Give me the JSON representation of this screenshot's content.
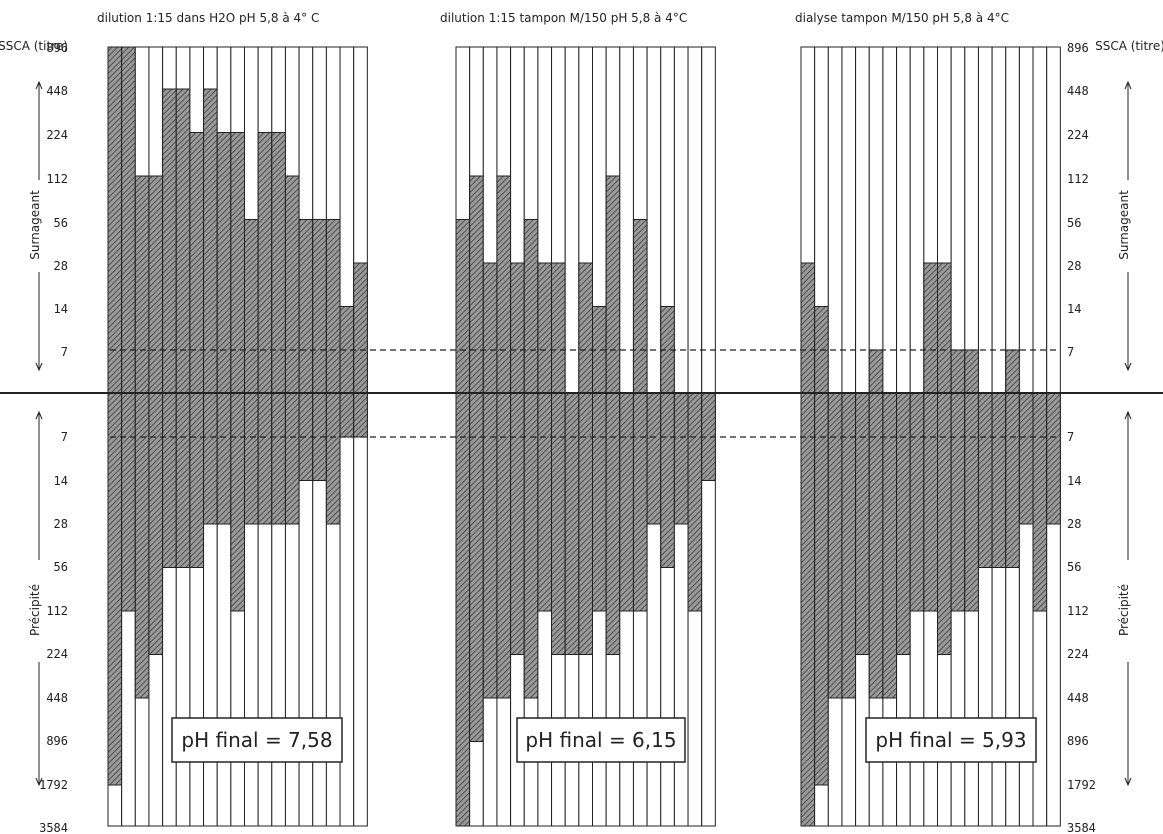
{
  "chart_data": {
    "type": "bar",
    "ylabel": "SSCA (titre)",
    "ticks_supernatant": [
      "896",
      "448",
      "224",
      "112",
      "56",
      "28",
      "14",
      "7"
    ],
    "ticks_precipitate": [
      "7",
      "14",
      "28",
      "56",
      "112",
      "224",
      "448",
      "896",
      "1792",
      "3584"
    ],
    "section_labels": {
      "supernatant": "Surnageant",
      "precipitate": "Précipité"
    },
    "panels": [
      {
        "title": "dilution 1:15 dans H2O pH 5,8 à 4° C",
        "ph_label": "pH final = 7,58",
        "supernatant_titer": [
          896,
          896,
          112,
          112,
          448,
          448,
          224,
          448,
          224,
          224,
          56,
          224,
          224,
          112,
          56,
          56,
          56,
          14,
          28
        ],
        "precipitate_titer": [
          1792,
          112,
          448,
          224,
          56,
          56,
          56,
          28,
          28,
          112,
          28,
          28,
          28,
          28,
          14,
          14,
          28,
          7,
          7
        ]
      },
      {
        "title": "dilution 1:15 tampon M/150 pH 5,8 à 4°C",
        "ph_label": "pH final = 6,15",
        "supernatant_titer": [
          56,
          112,
          28,
          112,
          28,
          56,
          28,
          28,
          0,
          28,
          14,
          112,
          0,
          56,
          0,
          14,
          0,
          0,
          0
        ],
        "precipitate_titer": [
          3584,
          896,
          448,
          448,
          224,
          448,
          112,
          224,
          224,
          224,
          112,
          224,
          112,
          112,
          28,
          56,
          28,
          112,
          14
        ]
      },
      {
        "title": "dialyse tampon M/150 pH 5,8 à 4°C",
        "ph_label": "pH final = 5,93",
        "supernatant_titer": [
          28,
          14,
          0,
          0,
          0,
          7,
          0,
          0,
          0,
          28,
          28,
          7,
          7,
          0,
          0,
          7,
          0,
          0,
          0
        ],
        "precipitate_titer": [
          3584,
          1792,
          448,
          448,
          224,
          448,
          448,
          224,
          112,
          112,
          224,
          112,
          112,
          56,
          56,
          56,
          28,
          112,
          28
        ]
      }
    ]
  }
}
